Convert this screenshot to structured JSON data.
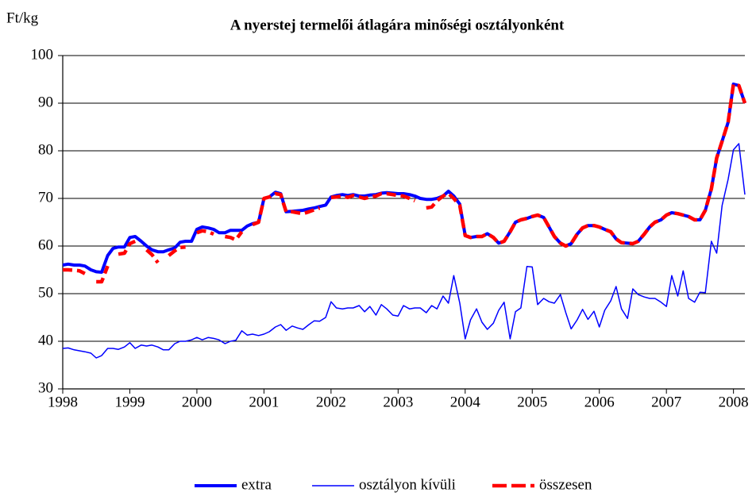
{
  "chart_data": {
    "type": "line",
    "title": "A nyerstej termelői átlagára minőségi osztályonként",
    "y_label": "Ft/kg",
    "x": [
      1998,
      1998.08,
      1998.17,
      1998.25,
      1998.33,
      1998.42,
      1998.5,
      1998.58,
      1998.67,
      1998.75,
      1998.83,
      1998.92,
      1999,
      1999.08,
      1999.17,
      1999.25,
      1999.33,
      1999.42,
      1999.5,
      1999.58,
      1999.67,
      1999.75,
      1999.83,
      1999.92,
      2000,
      2000.08,
      2000.17,
      2000.25,
      2000.33,
      2000.42,
      2000.5,
      2000.58,
      2000.67,
      2000.75,
      2000.83,
      2000.92,
      2001,
      2001.08,
      2001.17,
      2001.25,
      2001.33,
      2001.42,
      2001.5,
      2001.58,
      2001.67,
      2001.75,
      2001.83,
      2001.92,
      2002,
      2002.08,
      2002.17,
      2002.25,
      2002.33,
      2002.42,
      2002.5,
      2002.58,
      2002.67,
      2002.75,
      2002.83,
      2002.92,
      2003,
      2003.08,
      2003.17,
      2003.25,
      2003.33,
      2003.42,
      2003.5,
      2003.58,
      2003.67,
      2003.75,
      2003.83,
      2003.92,
      2004,
      2004.08,
      2004.17,
      2004.25,
      2004.33,
      2004.42,
      2004.5,
      2004.58,
      2004.67,
      2004.75,
      2004.83,
      2004.92,
      2005,
      2005.08,
      2005.17,
      2005.25,
      2005.33,
      2005.42,
      2005.5,
      2005.58,
      2005.67,
      2005.75,
      2005.83,
      2005.92,
      2006,
      2006.08,
      2006.17,
      2006.25,
      2006.33,
      2006.42,
      2006.5,
      2006.58,
      2006.67,
      2006.75,
      2006.83,
      2006.92,
      2007,
      2007.08,
      2007.17,
      2007.25,
      2007.33,
      2007.42,
      2007.5,
      2007.58,
      2007.67,
      2007.75,
      2007.83,
      2007.92,
      2008,
      2008.08,
      2008.17
    ],
    "series": [
      {
        "name": "extra",
        "color": "#0000ff",
        "values": [
          56,
          56.2,
          56,
          56,
          55.8,
          55,
          54.6,
          54.5,
          58,
          59.5,
          59.8,
          59.8,
          61.8,
          62,
          61,
          60,
          59.2,
          58.8,
          58.8,
          59.2,
          59.6,
          60.8,
          61,
          61,
          63.5,
          64,
          63.8,
          63.5,
          62.8,
          62.8,
          63.3,
          63.3,
          63.3,
          64.2,
          64.7,
          65,
          70,
          70.3,
          71.3,
          71,
          67.2,
          67.3,
          67.4,
          67.5,
          67.8,
          68,
          68.3,
          68.6,
          70.3,
          70.6,
          70.8,
          70.6,
          70.8,
          70.5,
          70.5,
          70.7,
          70.8,
          71.1,
          71.2,
          71.1,
          71,
          71,
          70.8,
          70.5,
          70,
          69.8,
          69.8,
          70,
          70.5,
          71.5,
          70.5,
          68.8,
          62.2,
          61.8,
          62,
          62,
          62.6,
          61.8,
          60.6,
          61,
          63,
          65,
          65.5,
          65.8,
          66.2,
          66.5,
          66,
          64,
          62,
          60.6,
          60,
          60.5,
          62.5,
          63.8,
          64.3,
          64.3,
          64,
          63.5,
          63,
          61.5,
          60.7,
          60.6,
          60.5,
          61,
          62.5,
          64,
          65,
          65.5,
          66.5,
          67,
          66.8,
          66.5,
          66.2,
          65.5,
          65.5,
          67.5,
          72,
          78.5,
          82,
          86,
          94,
          93.7,
          90
        ]
      },
      {
        "name": "osztályon kívüli",
        "color": "#0000ff",
        "values": [
          38.5,
          38.6,
          38.2,
          38,
          37.8,
          37.5,
          36.5,
          37,
          38.5,
          38.5,
          38.3,
          38.8,
          39.7,
          38.5,
          39.2,
          39,
          39.2,
          38.8,
          38.2,
          38.2,
          39.5,
          40,
          40,
          40.3,
          40.8,
          40.3,
          40.8,
          40.6,
          40.3,
          39.5,
          40,
          40.2,
          42.2,
          41.3,
          41.5,
          41.2,
          41.5,
          42,
          43,
          43.5,
          42.3,
          43.2,
          42.8,
          42.5,
          43.5,
          44.3,
          44.2,
          45,
          48.3,
          47,
          46.8,
          47,
          47,
          47.5,
          46.2,
          47.3,
          45.5,
          47.7,
          46.8,
          45.5,
          45.3,
          47.5,
          46.8,
          47,
          47,
          46,
          47.5,
          46.8,
          49.5,
          48,
          53.8,
          48,
          40.5,
          44.5,
          46.8,
          44,
          42.5,
          43.8,
          46.5,
          48.2,
          40.5,
          46.2,
          47,
          55.7,
          55.6,
          47.7,
          49,
          48.3,
          48,
          49.8,
          46,
          42.6,
          44.5,
          46.7,
          44.6,
          46.3,
          43,
          46.5,
          48.5,
          51.5,
          46.8,
          44.8,
          51,
          49.8,
          49.3,
          49,
          49,
          48.2,
          47.3,
          53.8,
          49.5,
          54.8,
          49,
          48.2,
          50.3,
          50.2,
          61,
          58.5,
          68.5,
          74,
          80.2,
          81.5,
          70.8
        ]
      },
      {
        "name": "összesen",
        "color": "#ff0000",
        "values": [
          55,
          55,
          54.9,
          54.8,
          54.2,
          null,
          52.5,
          52.5,
          55.8,
          null,
          58.3,
          58.5,
          60.5,
          61,
          null,
          59.2,
          58.2,
          56.5,
          null,
          58,
          59,
          59.7,
          59.8,
          null,
          62.8,
          63.2,
          63,
          62.5,
          null,
          62,
          61.8,
          61.3,
          63,
          null,
          64.5,
          65,
          70,
          70.3,
          71,
          70.8,
          67.2,
          67.2,
          67,
          66.8,
          67.2,
          67.6,
          68,
          null,
          70.2,
          70.3,
          70.5,
          70.2,
          70.6,
          70.3,
          70,
          70.3,
          70.5,
          71,
          71,
          70.8,
          70.6,
          70.5,
          70,
          69.5,
          null,
          68,
          68.2,
          69.5,
          70.5,
          71,
          70,
          68.5,
          62.2,
          61.8,
          62,
          62,
          62.6,
          61.8,
          60.6,
          61,
          63,
          65,
          65.5,
          65.8,
          66.2,
          66.5,
          66,
          64,
          62,
          60.6,
          60,
          60.5,
          62.5,
          63.8,
          64.3,
          64.3,
          64,
          63.5,
          63,
          61.5,
          60.7,
          60.6,
          60.5,
          61,
          62.5,
          64,
          65,
          65.5,
          66.5,
          67,
          66.8,
          66.5,
          66.2,
          65.5,
          65.5,
          67.5,
          72,
          78.5,
          82,
          86,
          94,
          93.7,
          90
        ]
      }
    ],
    "xlim": [
      1998,
      2008.17
    ],
    "xticks": [
      1998,
      1999,
      2000,
      2001,
      2002,
      2003,
      2004,
      2005,
      2006,
      2007,
      2008
    ],
    "ylim": [
      30,
      100
    ],
    "yticks": [
      30,
      40,
      50,
      60,
      70,
      80,
      90,
      100
    ],
    "grid": true,
    "legend": "bottom"
  }
}
